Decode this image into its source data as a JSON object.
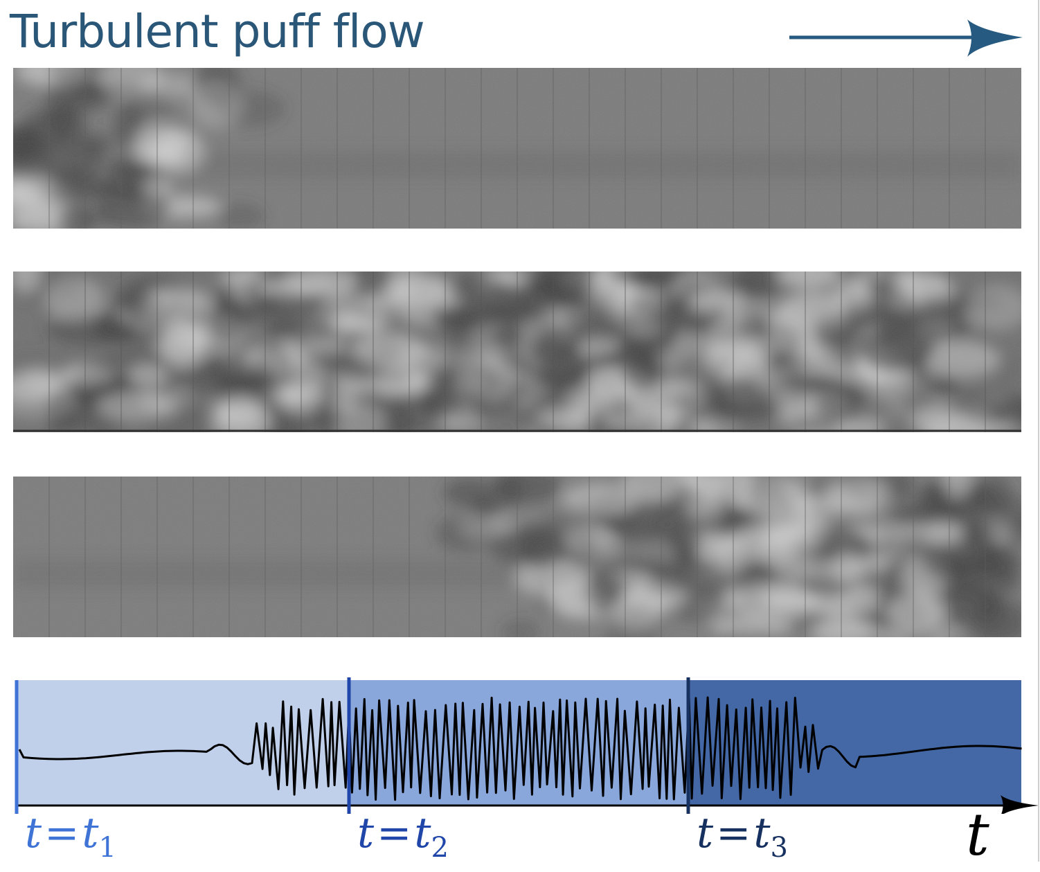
{
  "title": "Turbulent puff flow",
  "time_labels": [
    {
      "var": "t",
      "eq": "=",
      "base": "t",
      "sub": "1",
      "color": "#3f74d6"
    },
    {
      "var": "t",
      "eq": "=",
      "base": "t",
      "sub": "2",
      "color": "#1f46a8"
    },
    {
      "var": "t",
      "eq": "=",
      "base": "t",
      "sub": "3",
      "color": "#16305f"
    }
  ],
  "time_axis_label": "t",
  "colors": {
    "title": "#2a5677",
    "arrow": "#275a80",
    "phase_1": "#c1d0ea",
    "phase_2": "#8aa7dc",
    "phase_3": "#4468a6",
    "marker_1": "#3f74d6",
    "marker_2": "#1f46a8",
    "marker_3": "#16305f"
  },
  "icons": {
    "flow_direction": "arrow-right-icon",
    "time_axis": "arrow-right-icon"
  }
}
